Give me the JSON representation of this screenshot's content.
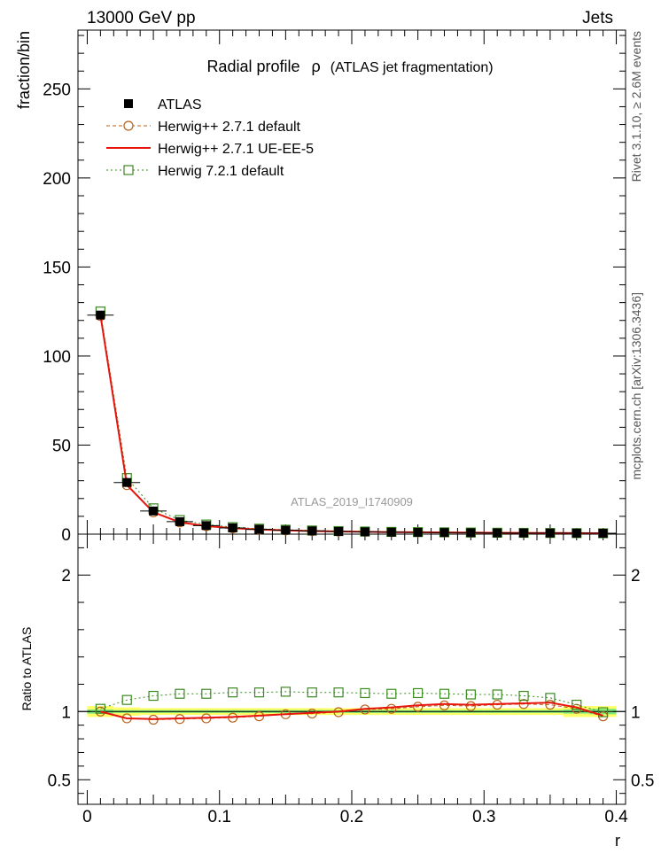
{
  "header": {
    "left": "13000 GeV pp",
    "right": "Jets"
  },
  "side_text": {
    "rivet": "Rivet 3.1.10, ≥ 2.6M events",
    "mcplots": "mcplots.cern.ch [arXiv:1306.3436]"
  },
  "watermark": "ATLAS_2019_I1740909",
  "chart_data": [
    {
      "type": "line",
      "title": "Radial profile",
      "title_symbol": "ρ",
      "title_suffix": "(ATLAS jet fragmentation)",
      "xlabel": "r",
      "ylabel": "fraction/bin",
      "xlim": [
        -0.007,
        0.407
      ],
      "ylim": [
        0,
        283
      ],
      "x_ticks": [
        0,
        0.1,
        0.2,
        0.3,
        0.4
      ],
      "x_tick_labels": [
        "0",
        "0.1",
        "0.2",
        "0.3",
        "0.4"
      ],
      "y_ticks": [
        0,
        50,
        100,
        150,
        200,
        250
      ],
      "y_tick_labels": [
        "0",
        "50",
        "100",
        "150",
        "200",
        "250"
      ],
      "legend_position": "top-left",
      "x": [
        0.01,
        0.03,
        0.05,
        0.07,
        0.09,
        0.11,
        0.13,
        0.15,
        0.17,
        0.19,
        0.21,
        0.23,
        0.25,
        0.27,
        0.29,
        0.31,
        0.33,
        0.35,
        0.37,
        0.39
      ],
      "series": [
        {
          "name": "ATLAS",
          "style": "marker-square-filled",
          "color": "#000000",
          "values": [
            123.0,
            29.0,
            13.0,
            7.0,
            4.8,
            3.5,
            2.7,
            2.2,
            1.8,
            1.5,
            1.3,
            1.1,
            1.0,
            0.9,
            0.8,
            0.7,
            0.65,
            0.6,
            0.55,
            0.5
          ]
        },
        {
          "name": "Herwig++ 2.7.1 default",
          "style": "dashed-circle",
          "color": "#b8621b",
          "values": [
            122.5,
            27.5,
            12.2,
            6.6,
            4.5,
            3.3,
            2.6,
            2.1,
            1.75,
            1.48,
            1.3,
            1.11,
            1.03,
            0.94,
            0.83,
            0.73,
            0.68,
            0.63,
            0.56,
            0.48
          ]
        },
        {
          "name": "Herwig++ 2.7.1 UE-EE-5",
          "style": "solid-line",
          "color": "#e8150c",
          "values": [
            122.8,
            27.6,
            12.3,
            6.65,
            4.55,
            3.33,
            2.6,
            2.12,
            1.76,
            1.49,
            1.31,
            1.12,
            1.04,
            0.95,
            0.84,
            0.74,
            0.69,
            0.64,
            0.57,
            0.49
          ]
        },
        {
          "name": "Herwig 7.2.1 default",
          "style": "dotted-square",
          "color": "#3a8a20",
          "values": [
            125.0,
            31.5,
            14.5,
            7.9,
            5.4,
            3.95,
            3.05,
            2.5,
            2.05,
            1.72,
            1.48,
            1.27,
            1.15,
            1.03,
            0.92,
            0.81,
            0.74,
            0.67,
            0.58,
            0.49
          ]
        }
      ]
    },
    {
      "type": "line",
      "ylabel": "Ratio to ATLAS",
      "xlabel": "r",
      "xlim": [
        -0.007,
        0.407
      ],
      "ylim": [
        0.32,
        2.3
      ],
      "x_ticks": [
        0,
        0.1,
        0.2,
        0.3,
        0.4
      ],
      "y_ticks": [
        0.5,
        1,
        2
      ],
      "y_tick_labels": [
        "0.5",
        "1",
        "2"
      ],
      "uncertainty_band": {
        "inner": [
          0.015,
          0.01,
          0.01,
          0.01,
          0.01,
          0.01,
          0.01,
          0.01,
          0.01,
          0.01,
          0.01,
          0.01,
          0.01,
          0.01,
          0.01,
          0.01,
          0.01,
          0.01,
          0.015,
          0.02
        ],
        "outer": [
          0.04,
          0.03,
          0.025,
          0.025,
          0.025,
          0.025,
          0.025,
          0.025,
          0.025,
          0.025,
          0.025,
          0.025,
          0.025,
          0.025,
          0.025,
          0.025,
          0.025,
          0.025,
          0.04,
          0.04
        ]
      },
      "x": [
        0.01,
        0.03,
        0.05,
        0.07,
        0.09,
        0.11,
        0.13,
        0.15,
        0.17,
        0.19,
        0.21,
        0.23,
        0.25,
        0.27,
        0.29,
        0.31,
        0.33,
        0.35,
        0.37,
        0.39
      ],
      "series": [
        {
          "name": "Herwig++ 2.7.1 default",
          "style": "dashed-circle",
          "color": "#b8621b",
          "values": [
            1.0,
            0.95,
            0.94,
            0.945,
            0.95,
            0.955,
            0.965,
            0.98,
            0.985,
            0.995,
            1.015,
            1.02,
            1.035,
            1.045,
            1.04,
            1.05,
            1.055,
            1.05,
            1.02,
            0.965
          ]
        },
        {
          "name": "Herwig++ 2.7.1 UE-EE-5",
          "style": "solid-line",
          "color": "#e8150c",
          "values": [
            1.0,
            0.95,
            0.945,
            0.95,
            0.955,
            0.96,
            0.97,
            0.98,
            0.99,
            1.0,
            1.02,
            1.03,
            1.045,
            1.055,
            1.05,
            1.055,
            1.06,
            1.065,
            1.03,
            0.97
          ]
        },
        {
          "name": "Herwig 7.2.1 default",
          "style": "dotted-square",
          "color": "#3a8a20",
          "values": [
            1.02,
            1.085,
            1.115,
            1.13,
            1.13,
            1.14,
            1.14,
            1.145,
            1.14,
            1.14,
            1.135,
            1.13,
            1.135,
            1.13,
            1.125,
            1.125,
            1.115,
            1.1,
            1.05,
            0.995
          ]
        }
      ]
    }
  ]
}
